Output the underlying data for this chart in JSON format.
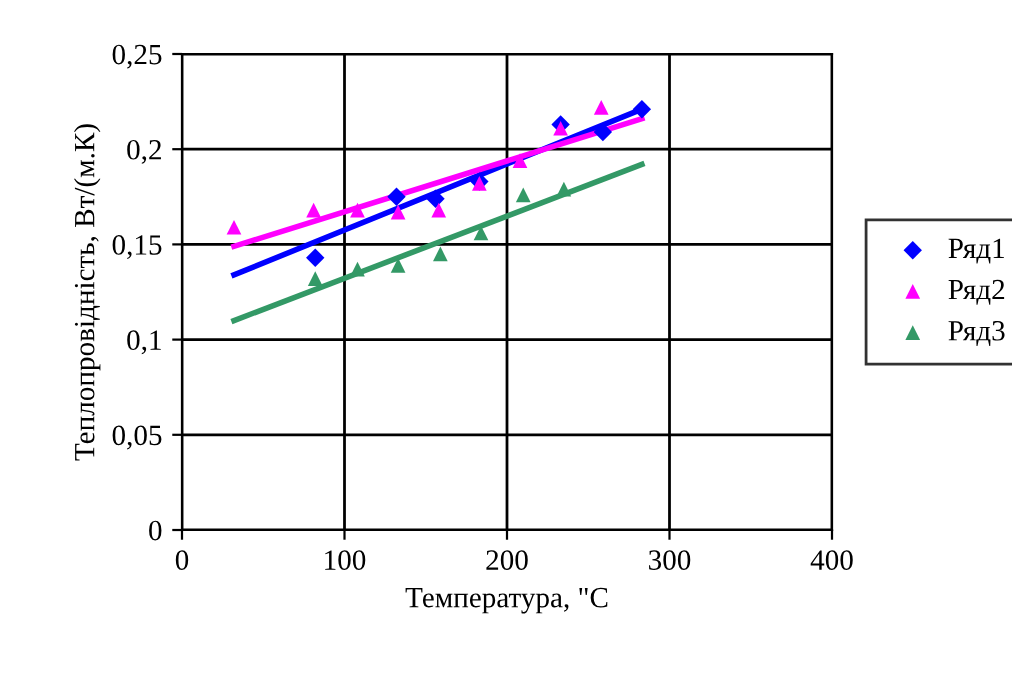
{
  "chart_data": {
    "type": "scatter",
    "xlabel": "Температура, \"С",
    "ylabel": "Теплопровідність, Вт/(м.К)",
    "xlim": [
      0,
      400
    ],
    "xticks": [
      0,
      100,
      200,
      300,
      400
    ],
    "ylim": [
      0,
      0.25
    ],
    "yticks": [
      0,
      {
        "value": 0.05,
        "label": "0,05"
      },
      {
        "value": 0.1,
        "label": "0,1"
      },
      {
        "value": 0.15,
        "label": "0,15"
      },
      {
        "value": 0.2,
        "label": "0,2"
      },
      {
        "value": 0.25,
        "label": "0,25"
      }
    ],
    "grid": true,
    "legend": "right",
    "series": [
      {
        "name": "Ряд1",
        "color": "#0000ff",
        "marker": "diamond",
        "x": [
          82,
          108,
          132,
          156,
          183,
          208,
          233,
          259,
          283
        ],
        "values": [
          0.143,
          null,
          0.175,
          0.174,
          0.183,
          null,
          0.213,
          0.209,
          0.221
        ]
      },
      {
        "name": "Ряд2",
        "color": "#ff00ff",
        "marker": "triangle",
        "x": [
          32,
          81,
          108,
          133,
          158,
          183,
          208,
          233,
          258
        ],
        "values": [
          0.159,
          0.168,
          0.168,
          0.167,
          0.168,
          0.182,
          0.194,
          0.211,
          0.222
        ]
      },
      {
        "name": "Ряд3",
        "color": "#339966",
        "marker": "triangle",
        "x": [
          82,
          108,
          133,
          159,
          184,
          210,
          235
        ],
        "values": [
          0.132,
          0.137,
          0.139,
          0.145,
          0.156,
          0.176,
          0.179
        ]
      },
      {
        "type": "line",
        "color": "#0000ff",
        "x": [
          32,
          283
        ],
        "values": [
          0.134,
          0.221
        ]
      },
      {
        "type": "line",
        "color": "#ff00ff",
        "x": [
          32,
          283
        ],
        "values": [
          0.149,
          0.216
        ]
      },
      {
        "type": "line",
        "color": "#339966",
        "x": [
          32,
          283
        ],
        "values": [
          0.11,
          0.192
        ]
      }
    ]
  }
}
